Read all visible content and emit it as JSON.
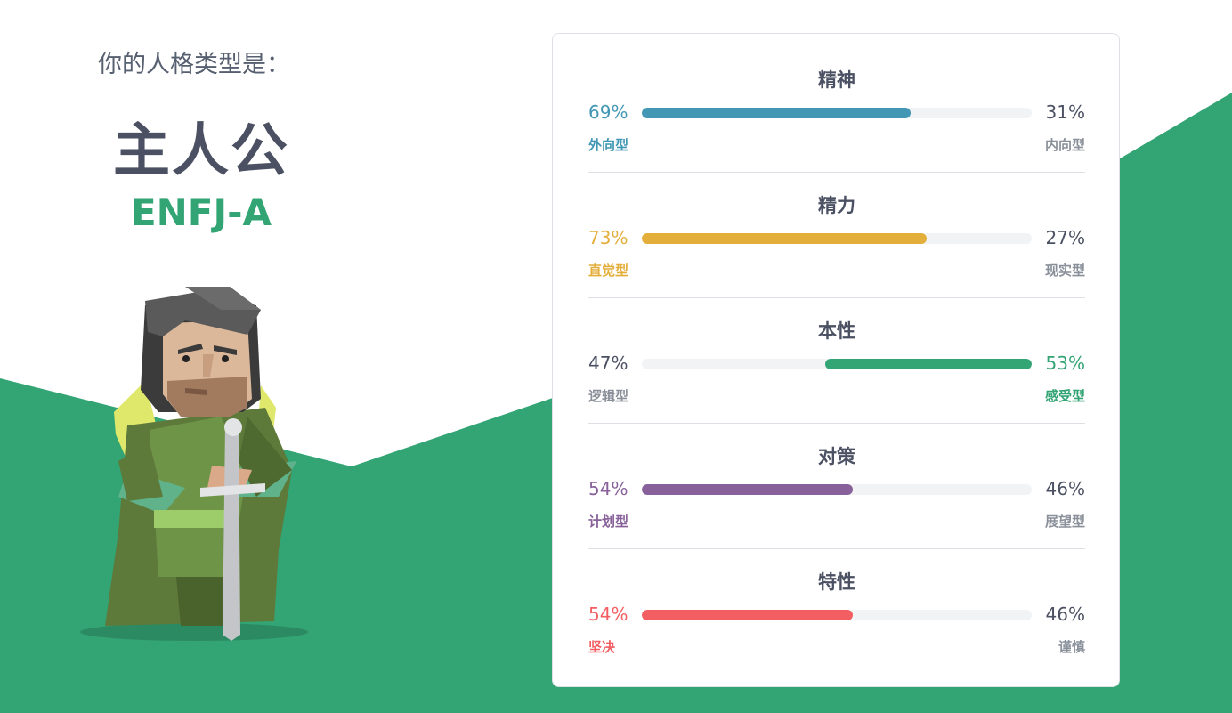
{
  "intro": {
    "subtitle": "你的人格类型是：",
    "type_name": "主人公",
    "type_code": "ENFJ-A"
  },
  "colors": {
    "green": "#33a474",
    "blue": "#4298b4",
    "yellow": "#e4ae3a",
    "purple": "#88619a",
    "red": "#f25e62",
    "text_dark": "#4b5163",
    "text_muted": "#8a909a"
  },
  "traits": [
    {
      "title": "精神",
      "left_pct": "69%",
      "right_pct": "31%",
      "left_label": "外向型",
      "right_label": "内向型",
      "value": 69,
      "dominant": "left",
      "color": "#4298b4"
    },
    {
      "title": "精力",
      "left_pct": "73%",
      "right_pct": "27%",
      "left_label": "直觉型",
      "right_label": "现实型",
      "value": 73,
      "dominant": "left",
      "color": "#e4ae3a"
    },
    {
      "title": "本性",
      "left_pct": "47%",
      "right_pct": "53%",
      "left_label": "逻辑型",
      "right_label": "感受型",
      "value": 53,
      "dominant": "right",
      "color": "#33a474"
    },
    {
      "title": "对策",
      "left_pct": "54%",
      "right_pct": "46%",
      "left_label": "计划型",
      "right_label": "展望型",
      "value": 54,
      "dominant": "left",
      "color": "#88619a"
    },
    {
      "title": "特性",
      "left_pct": "54%",
      "right_pct": "46%",
      "left_label": "坚决",
      "right_label": "谨慎",
      "value": 54,
      "dominant": "left",
      "color": "#f25e62"
    }
  ]
}
